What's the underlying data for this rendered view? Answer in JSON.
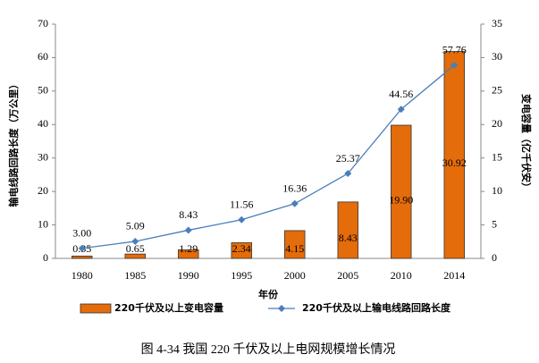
{
  "chart_data": {
    "type": "bar",
    "xlabel": "年份",
    "ylabel": "输电线路回路长度（万公里）",
    "y2label": "变电容量（亿千伏安）",
    "caption": "图 4-34  我国 220 千伏及以上电网规模增长情况",
    "categories": [
      "1980",
      "1985",
      "1990",
      "1995",
      "2000",
      "2005",
      "2010",
      "2014"
    ],
    "series": [
      {
        "name": "220千伏及以上变电容量",
        "type": "bar",
        "axis": "y2",
        "color": "#e46c0a",
        "values": [
          0.35,
          0.65,
          1.29,
          2.34,
          4.15,
          8.43,
          19.9,
          30.92
        ],
        "value_labels": [
          "0.35",
          "0.65",
          "1.29",
          "2.34",
          "4.15",
          "8.43",
          "19.90",
          "30.92"
        ]
      },
      {
        "name": "220千伏及以上输电线路回路长度",
        "type": "line",
        "axis": "y",
        "color": "#4a7ebb",
        "values": [
          3,
          5.09,
          8.43,
          11.56,
          16.36,
          25.37,
          44.56,
          57.76
        ],
        "value_labels": [
          "3.00",
          "5.09",
          "8.43",
          "11.56",
          "16.36",
          "25.37",
          "44.56",
          "57.76"
        ]
      }
    ],
    "ylim": [
      0,
      70
    ],
    "yticks": [
      0,
      10,
      20,
      30,
      40,
      50,
      60,
      70
    ],
    "y2lim": [
      0,
      35
    ],
    "y2ticks": [
      0,
      5,
      10,
      15,
      20,
      25,
      30,
      35
    ]
  }
}
